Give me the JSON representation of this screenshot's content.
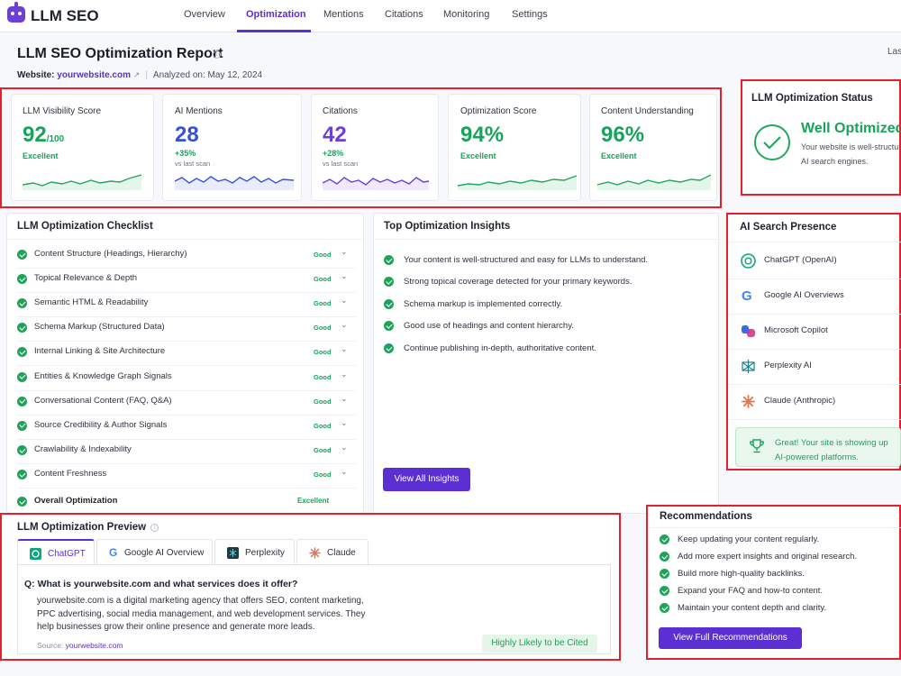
{
  "app": {
    "name": "LLM SEO"
  },
  "nav": {
    "items": [
      "Overview",
      "Optimization",
      "Mentions",
      "Citations",
      "Monitoring",
      "Settings"
    ],
    "active": "Optimization"
  },
  "header": {
    "title": "LLM SEO Optimization Report",
    "website_label": "Website:",
    "website": "yourwebsite.com",
    "analyzed_label": "Analyzed on: May 12, 2024",
    "right_cut": "Last"
  },
  "metrics": [
    {
      "label": "LLM Visibility Score",
      "value": "92",
      "suffix": "/100",
      "sub": "Excellent",
      "sub2": ""
    },
    {
      "label": "AI Mentions",
      "value": "28",
      "suffix": "",
      "sub": "+35%",
      "sub2": "vs last scan"
    },
    {
      "label": "Citations",
      "value": "42",
      "suffix": "",
      "sub": "+28%",
      "sub2": "vs last scan"
    },
    {
      "label": "Optimization Score",
      "value": "94%",
      "suffix": "",
      "sub": "Excellent",
      "sub2": ""
    },
    {
      "label": "Content Understanding",
      "value": "96%",
      "suffix": "",
      "sub": "Excellent",
      "sub2": ""
    }
  ],
  "status": {
    "title": "LLM Optimization Status",
    "headline": "Well Optimized",
    "line1": "Your website is well-structu",
    "line2": "AI search engines."
  },
  "checklist": {
    "title": "LLM Optimization Checklist",
    "items": [
      {
        "label": "Content Structure (Headings, Hierarchy)",
        "status": "Good"
      },
      {
        "label": "Topical Relevance & Depth",
        "status": "Good"
      },
      {
        "label": "Semantic HTML & Readability",
        "status": "Good"
      },
      {
        "label": "Schema Markup (Structured Data)",
        "status": "Good"
      },
      {
        "label": "Internal Linking & Site Architecture",
        "status": "Good"
      },
      {
        "label": "Entities & Knowledge Graph Signals",
        "status": "Good"
      },
      {
        "label": "Conversational Content (FAQ, Q&A)",
        "status": "Good"
      },
      {
        "label": "Source Credibility & Author Signals",
        "status": "Good"
      },
      {
        "label": "Crawlability & Indexability",
        "status": "Good"
      },
      {
        "label": "Content Freshness",
        "status": "Good"
      }
    ],
    "overall_label": "Overall Optimization",
    "overall_status": "Excellent"
  },
  "insights": {
    "title": "Top Optimization Insights",
    "items": [
      "Your content is well-structured and easy for LLMs to understand.",
      "Strong topical coverage detected for your primary keywords.",
      "Schema markup is implemented correctly.",
      "Good use of headings and content hierarchy.",
      "Continue publishing in-depth, authoritative content."
    ],
    "button": "View All Insights"
  },
  "presence": {
    "title": "AI Search Presence",
    "items": [
      "ChatGPT (OpenAI)",
      "Google AI Overviews",
      "Microsoft Copilot",
      "Perplexity AI",
      "Claude (Anthropic)"
    ],
    "banner_line1": "Great! Your site is showing up",
    "banner_line2": "AI-powered platforms."
  },
  "preview": {
    "title": "LLM Optimization Preview",
    "tabs": [
      "ChatGPT",
      "Google AI Overview",
      "Perplexity",
      "Claude"
    ],
    "question": "Q:  What is yourwebsite.com and what services does it offer?",
    "answer_lines": [
      "yourwebsite.com is a digital marketing agency that offers SEO, content marketing,",
      "PPC advertising, social media management, and web development services. They",
      "help businesses grow their online presence and generate more leads."
    ],
    "source_label": "Source:",
    "source": "yourwebsite.com",
    "badge": "Highly Likely to be Cited"
  },
  "recommendations": {
    "title": "Recommendations",
    "items": [
      "Keep updating your content regularly.",
      "Add more expert insights and original research.",
      "Build more high-quality backlinks.",
      "Expand your FAQ and how-to content.",
      "Maintain your content depth and clarity."
    ],
    "button": "View Full Recommendations"
  },
  "colors": {
    "accent": "#5b2fd1",
    "good": "#19a35a",
    "highlight": "#e3202c"
  }
}
